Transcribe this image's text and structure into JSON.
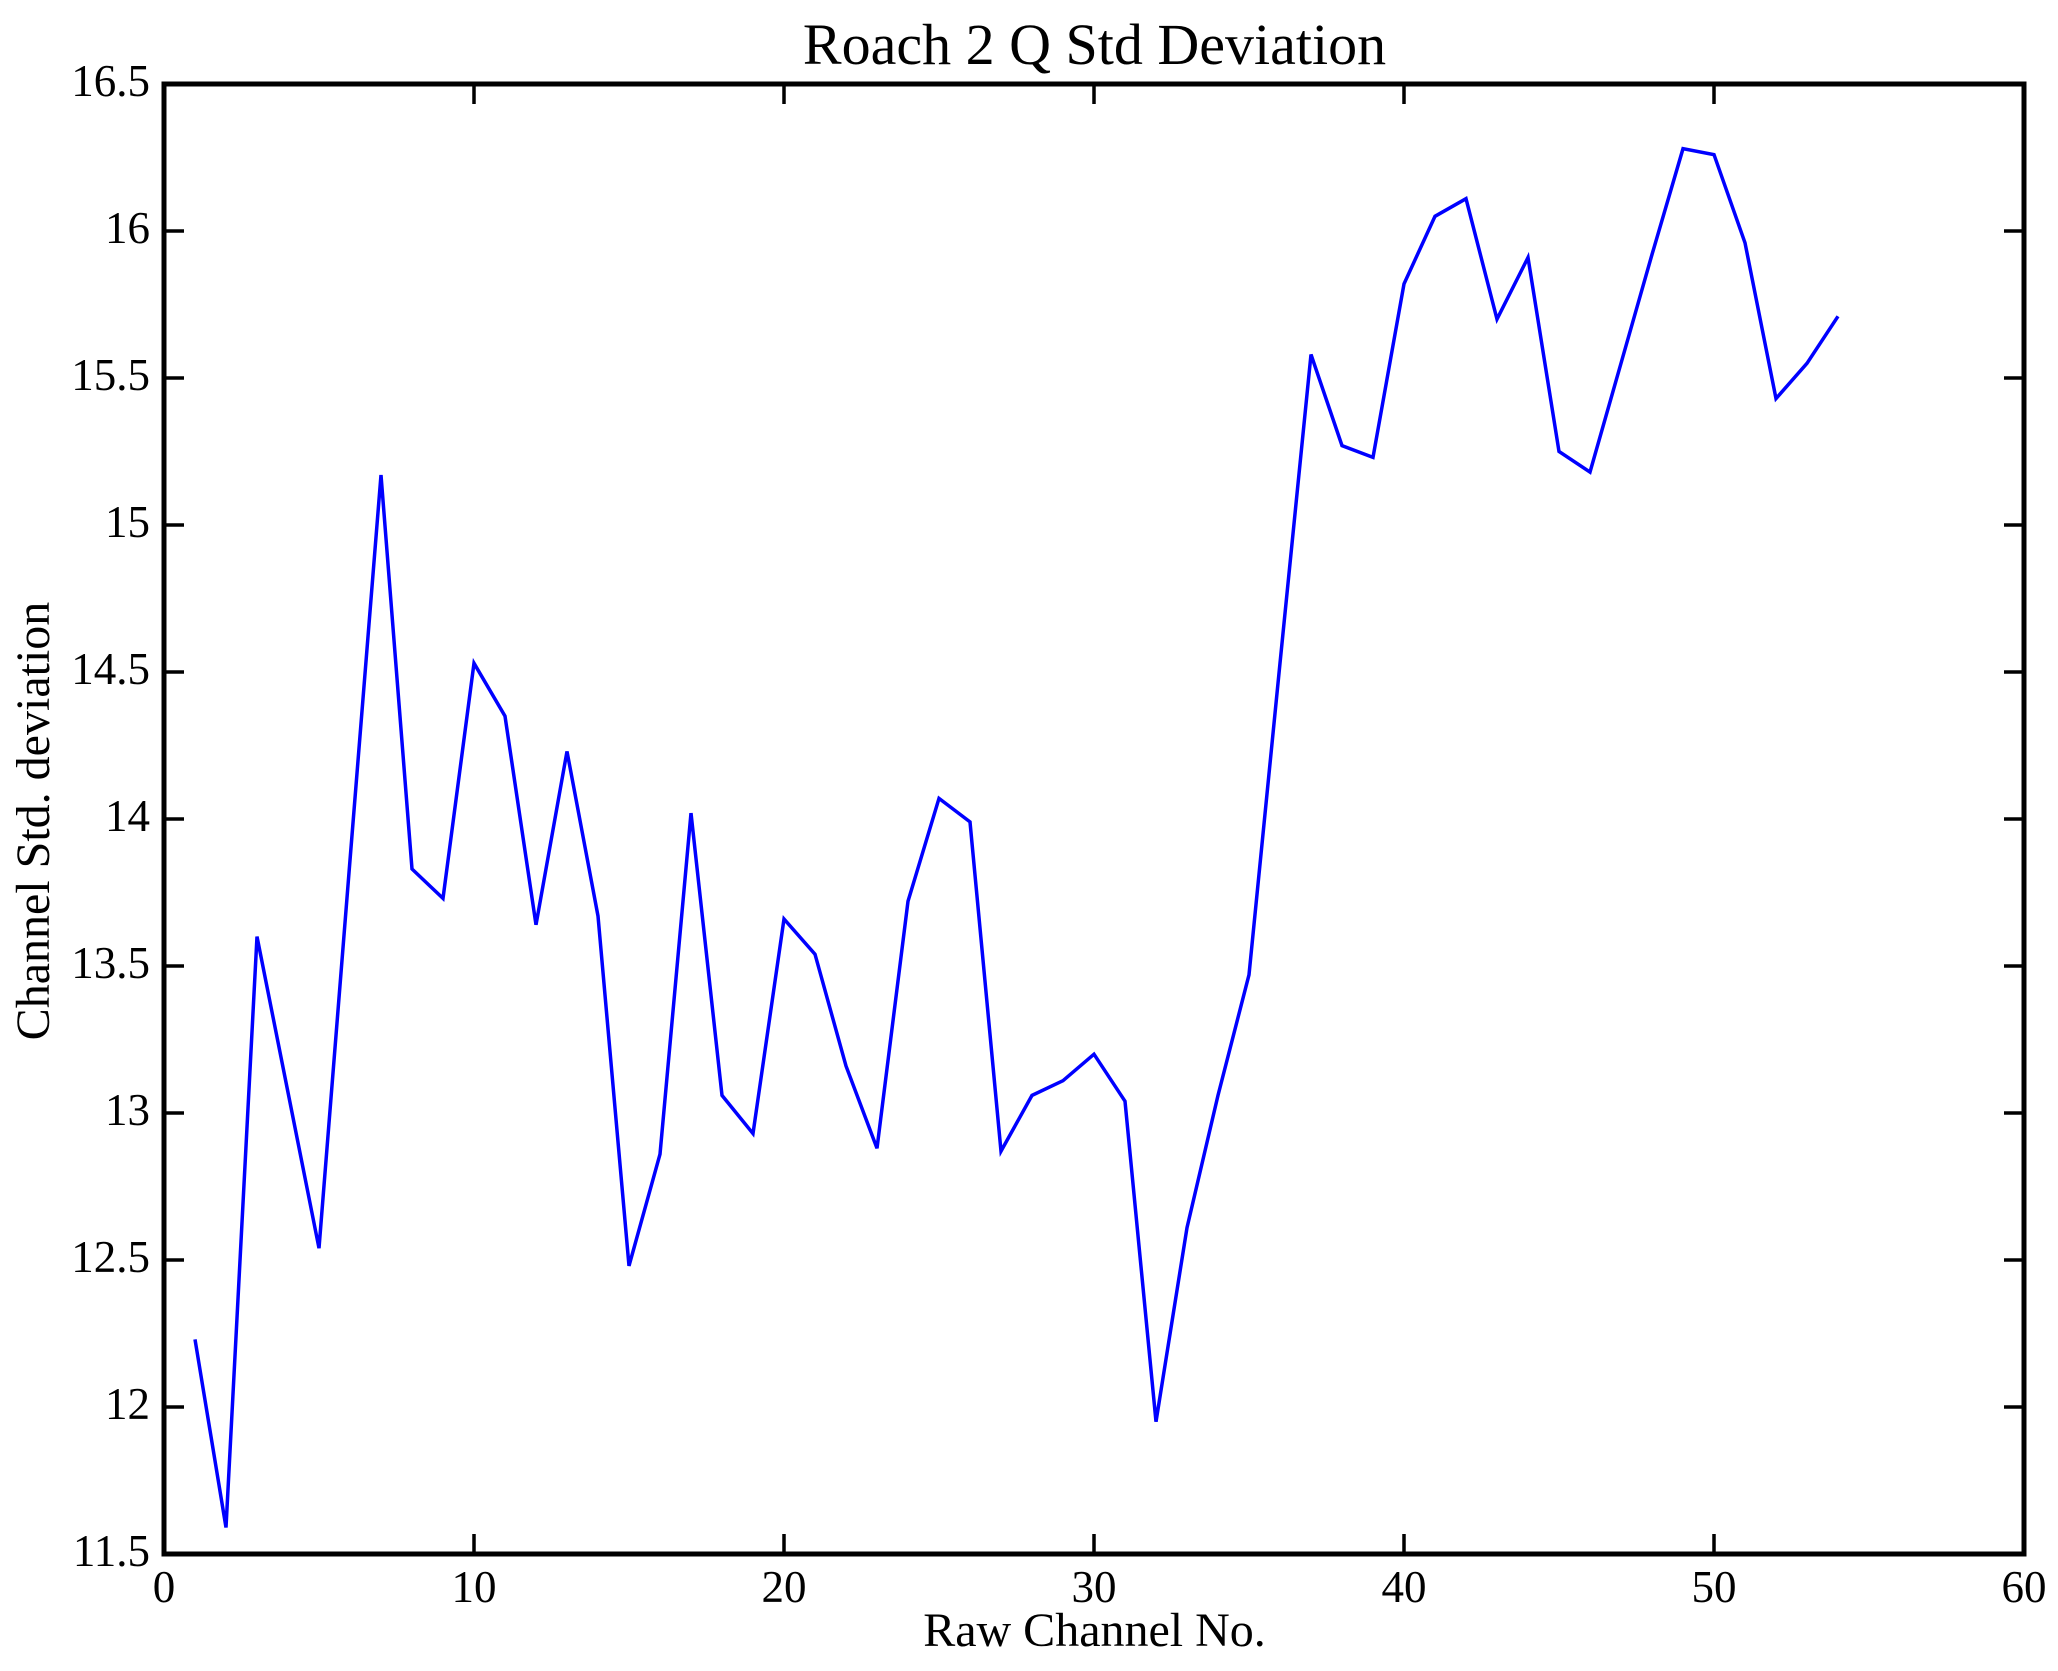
{
  "chart_data": {
    "type": "line",
    "title": "Roach 2 Q Std Deviation",
    "xlabel": "Raw Channel No.",
    "ylabel": "Channel Std. deviation",
    "xlim": [
      0,
      60
    ],
    "ylim": [
      11.5,
      16.5
    ],
    "grid": false,
    "legend": null,
    "box": true,
    "tick_direction": "in",
    "background_color": "#ffffff",
    "axis_color": "#000000",
    "x_ticks": [
      0,
      10,
      20,
      30,
      40,
      50,
      60
    ],
    "x_tick_labels": [
      "0",
      "10",
      "20",
      "30",
      "40",
      "50",
      "60"
    ],
    "y_ticks": [
      11.5,
      12,
      12.5,
      13,
      13.5,
      14,
      14.5,
      15,
      15.5,
      16,
      16.5
    ],
    "y_tick_labels": [
      "11.5",
      "12",
      "12.5",
      "13",
      "13.5",
      "14",
      "14.5",
      "15",
      "15.5",
      "16",
      "16.5"
    ],
    "series": [
      {
        "name": "Channel Std. deviation",
        "color": "#0000ff",
        "x": [
          1,
          2,
          3,
          4,
          5,
          6,
          7,
          8,
          9,
          10,
          11,
          12,
          13,
          14,
          15,
          16,
          17,
          18,
          19,
          20,
          21,
          22,
          23,
          24,
          25,
          26,
          27,
          28,
          29,
          30,
          31,
          32,
          33,
          34,
          35,
          36,
          37,
          38,
          39,
          40,
          41,
          42,
          43,
          44,
          45,
          46,
          47,
          48,
          49,
          50,
          51,
          52,
          53,
          54
        ],
        "y": [
          12.23,
          11.59,
          13.6,
          13.07,
          12.54,
          13.86,
          15.17,
          13.83,
          13.73,
          14.53,
          14.35,
          13.64,
          14.23,
          13.67,
          12.48,
          12.86,
          14.02,
          13.06,
          12.93,
          13.66,
          13.54,
          13.16,
          12.88,
          13.72,
          14.07,
          13.99,
          12.87,
          13.06,
          13.11,
          13.2,
          13.04,
          11.95,
          12.61,
          13.06,
          13.47,
          14.53,
          15.58,
          15.27,
          15.23,
          15.82,
          16.05,
          16.11,
          15.7,
          15.91,
          15.25,
          15.18,
          15.55,
          15.92,
          16.28,
          16.26,
          15.96,
          15.43,
          15.55,
          15.71
        ]
      }
    ]
  }
}
